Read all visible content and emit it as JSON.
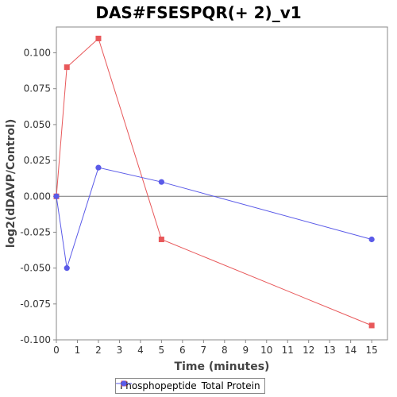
{
  "chart_data": {
    "type": "line",
    "title": "DAS#FSESPQR(+ 2)_v1",
    "xlabel": "Time (minutes)",
    "ylabel": "log2(dDAVP/Control)",
    "xlim": [
      0,
      15.75
    ],
    "ylim": [
      -0.1,
      0.118
    ],
    "x_ticks": [
      0,
      1,
      2,
      3,
      4,
      5,
      6,
      7,
      8,
      9,
      10,
      11,
      12,
      13,
      14,
      15
    ],
    "y_ticks": [
      -0.1,
      -0.075,
      -0.05,
      -0.025,
      0.0,
      0.025,
      0.05,
      0.075,
      0.1
    ],
    "y_tick_labels": [
      "-0.100",
      "-0.075",
      "-0.050",
      "-0.025",
      "0.000",
      "0.025",
      "0.050",
      "0.075",
      "0.100"
    ],
    "zero_line": true,
    "grid": false,
    "legend_position": "bottom",
    "series": [
      {
        "name": "Phosphopeptide",
        "color": "#e8585a",
        "marker": "square",
        "x": [
          0,
          0.5,
          2,
          5,
          15
        ],
        "y": [
          0.0,
          0.09,
          0.11,
          -0.03,
          -0.09
        ]
      },
      {
        "name": "Total Protein",
        "color": "#5a5ae8",
        "marker": "circle",
        "x": [
          0,
          0.5,
          2,
          5,
          15
        ],
        "y": [
          0.0,
          -0.05,
          0.02,
          0.01,
          -0.03
        ]
      }
    ]
  }
}
